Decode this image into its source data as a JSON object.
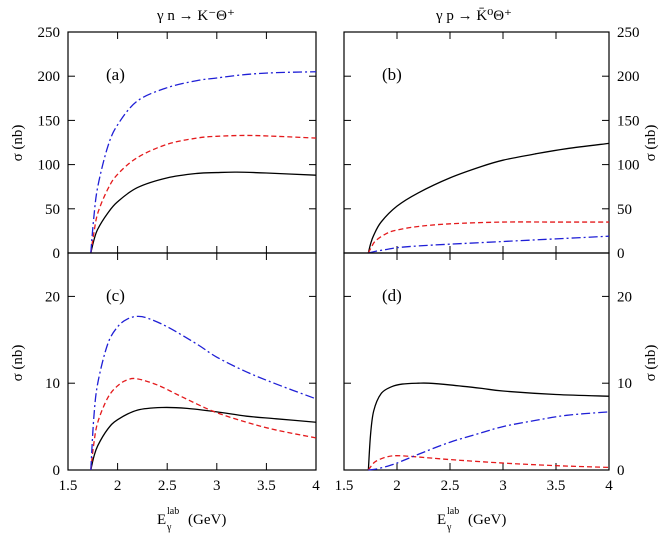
{
  "figure": {
    "titles": {
      "left": "γ n → K⁻Θ⁺",
      "right": "γ p → K̄⁰Θ⁺"
    },
    "ylabel": "σ  (nb)",
    "xlabel_main": "E",
    "xlabel_sub": "γ",
    "xlabel_sup": "lab",
    "xlabel_unit": "(GeV)"
  },
  "chart_data": [
    {
      "id": "a",
      "type": "line",
      "panel_label": "(a)",
      "xlim": [
        1.5,
        4.0
      ],
      "ylim": [
        0,
        250
      ],
      "xticks": [
        1.5,
        2,
        2.5,
        3,
        3.5,
        4
      ],
      "yticks": [
        0,
        50,
        100,
        150,
        200,
        250
      ],
      "series": [
        {
          "name": "solid",
          "color": "#000000",
          "dash": "",
          "x": [
            1.73,
            1.76,
            1.8,
            1.9,
            2.0,
            2.2,
            2.5,
            2.8,
            3.0,
            3.2,
            3.5,
            4.0
          ],
          "y": [
            0,
            14,
            27,
            45,
            58,
            74,
            85,
            90,
            91,
            91.5,
            90.5,
            88
          ]
        },
        {
          "name": "dashed",
          "color": "#e41a1c",
          "dash": "5,3",
          "x": [
            1.73,
            1.76,
            1.8,
            1.9,
            2.0,
            2.2,
            2.5,
            2.8,
            3.0,
            3.3,
            3.6,
            4.0
          ],
          "y": [
            0,
            22,
            45,
            72,
            89,
            108,
            123,
            130,
            132,
            133,
            132,
            130
          ]
        },
        {
          "name": "dash-dot",
          "color": "#1f1fd6",
          "dash": "9,3,2,3",
          "x": [
            1.73,
            1.76,
            1.8,
            1.9,
            2.0,
            2.2,
            2.5,
            2.8,
            3.0,
            3.3,
            3.6,
            4.0
          ],
          "y": [
            0,
            40,
            75,
            120,
            145,
            172,
            187,
            195,
            198,
            202,
            204,
            205
          ]
        }
      ]
    },
    {
      "id": "b",
      "type": "line",
      "panel_label": "(b)",
      "xlim": [
        1.5,
        4.0
      ],
      "ylim": [
        0,
        250
      ],
      "xticks": [
        1.5,
        2,
        2.5,
        3,
        3.5,
        4
      ],
      "yticks": [
        0,
        50,
        100,
        150,
        200,
        250
      ],
      "series": [
        {
          "name": "solid",
          "color": "#000000",
          "dash": "",
          "x": [
            1.73,
            1.75,
            1.78,
            1.85,
            2.0,
            2.2,
            2.5,
            2.8,
            3.0,
            3.3,
            3.6,
            4.0
          ],
          "y": [
            0,
            10,
            20,
            35,
            53,
            68,
            85,
            98,
            105,
            112,
            118,
            124
          ]
        },
        {
          "name": "dashed",
          "color": "#e41a1c",
          "dash": "5,3",
          "x": [
            1.73,
            1.76,
            1.8,
            1.9,
            2.0,
            2.2,
            2.5,
            3.0,
            3.5,
            4.0
          ],
          "y": [
            0,
            7,
            14,
            22,
            26,
            30,
            33,
            35,
            35,
            35
          ]
        },
        {
          "name": "dash-dot",
          "color": "#1f1fd6",
          "dash": "9,3,2,3",
          "x": [
            1.73,
            1.8,
            1.9,
            2.0,
            2.2,
            2.5,
            3.0,
            3.5,
            4.0
          ],
          "y": [
            0,
            2,
            4,
            6,
            8,
            10,
            13,
            16,
            19
          ]
        }
      ]
    },
    {
      "id": "c",
      "type": "line",
      "panel_label": "(c)",
      "xlim": [
        1.5,
        4.0
      ],
      "ylim": [
        0,
        25
      ],
      "xticks": [
        1.5,
        2,
        2.5,
        3,
        3.5,
        4
      ],
      "yticks": [
        0,
        10,
        20
      ],
      "series": [
        {
          "name": "solid",
          "color": "#000000",
          "dash": "",
          "x": [
            1.73,
            1.76,
            1.8,
            1.9,
            2.0,
            2.2,
            2.45,
            2.7,
            3.0,
            3.3,
            3.6,
            4.0
          ],
          "y": [
            0,
            1.5,
            2.8,
            4.7,
            5.8,
            6.9,
            7.2,
            7.1,
            6.7,
            6.2,
            5.9,
            5.5
          ]
        },
        {
          "name": "dashed",
          "color": "#e41a1c",
          "dash": "5,3",
          "x": [
            1.73,
            1.76,
            1.8,
            1.9,
            2.0,
            2.1,
            2.2,
            2.4,
            2.6,
            2.8,
            3.0,
            3.3,
            3.6,
            4.0
          ],
          "y": [
            0,
            3,
            5.5,
            8.3,
            9.7,
            10.4,
            10.5,
            9.8,
            8.7,
            7.6,
            6.6,
            5.5,
            4.6,
            3.7
          ]
        },
        {
          "name": "dash-dot",
          "color": "#1f1fd6",
          "dash": "9,3,2,3",
          "x": [
            1.73,
            1.76,
            1.8,
            1.9,
            2.0,
            2.1,
            2.2,
            2.3,
            2.5,
            2.8,
            3.0,
            3.3,
            3.6,
            4.0
          ],
          "y": [
            0,
            6,
            10,
            14.5,
            16.5,
            17.4,
            17.7,
            17.5,
            16.5,
            14.5,
            13,
            11.3,
            9.9,
            8.2
          ]
        }
      ]
    },
    {
      "id": "d",
      "type": "line",
      "panel_label": "(d)",
      "xlim": [
        1.5,
        4.0
      ],
      "ylim": [
        0,
        25
      ],
      "xticks": [
        1.5,
        2,
        2.5,
        3,
        3.5,
        4
      ],
      "yticks": [
        0,
        10,
        20
      ],
      "series": [
        {
          "name": "solid",
          "color": "#000000",
          "dash": "",
          "x": [
            1.73,
            1.75,
            1.78,
            1.85,
            1.95,
            2.05,
            2.2,
            2.3,
            2.5,
            2.8,
            3.0,
            3.5,
            4.0
          ],
          "y": [
            0,
            4,
            6.8,
            8.8,
            9.6,
            9.9,
            10.0,
            10.0,
            9.8,
            9.4,
            9.1,
            8.7,
            8.5
          ]
        },
        {
          "name": "dashed",
          "color": "#e41a1c",
          "dash": "5,3",
          "x": [
            1.73,
            1.76,
            1.8,
            1.9,
            2.0,
            2.2,
            2.5,
            3.0,
            3.5,
            4.0
          ],
          "y": [
            0,
            0.5,
            1.0,
            1.5,
            1.65,
            1.5,
            1.2,
            0.8,
            0.5,
            0.3
          ]
        },
        {
          "name": "dash-dot",
          "color": "#1f1fd6",
          "dash": "9,3,2,3",
          "x": [
            1.73,
            1.8,
            1.9,
            2.0,
            2.2,
            2.5,
            2.8,
            3.0,
            3.3,
            3.6,
            4.0
          ],
          "y": [
            0,
            0.1,
            0.4,
            0.8,
            1.8,
            3.2,
            4.3,
            5.0,
            5.7,
            6.3,
            6.7
          ]
        }
      ]
    }
  ]
}
